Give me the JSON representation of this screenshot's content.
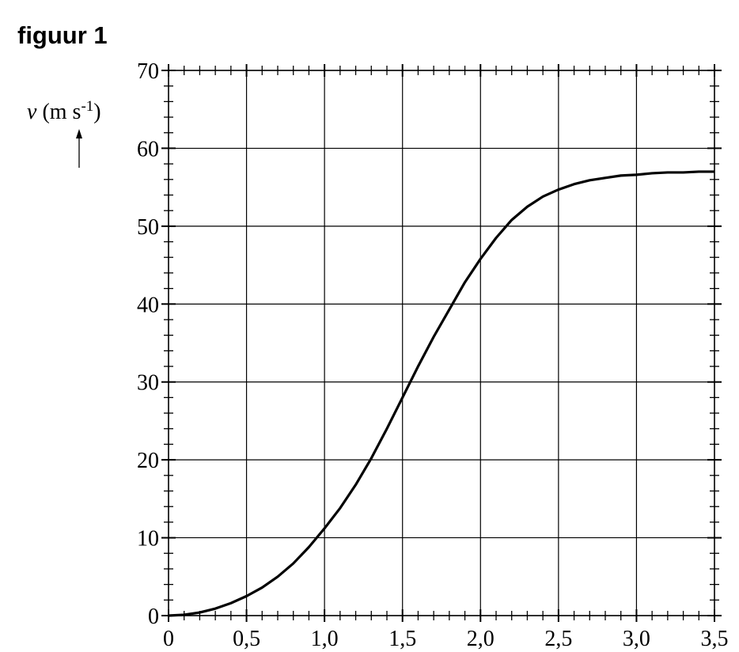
{
  "chart_data": {
    "type": "line",
    "title": "figuur 1",
    "ylabel": {
      "quantity": "v",
      "unit": "(m s",
      "exponent": "-1",
      "close": ")"
    },
    "x": [
      0,
      0.1,
      0.2,
      0.3,
      0.4,
      0.5,
      0.6,
      0.7,
      0.8,
      0.9,
      1.0,
      1.1,
      1.2,
      1.3,
      1.4,
      1.5,
      1.6,
      1.7,
      1.8,
      1.9,
      2.0,
      2.1,
      2.2,
      2.3,
      2.4,
      2.5,
      2.6,
      2.7,
      2.8,
      2.9,
      3.0,
      3.1,
      3.2,
      3.3,
      3.4,
      3.5
    ],
    "series": [
      {
        "color": "#000000",
        "values": [
          0,
          0.1,
          0.4,
          0.9,
          1.6,
          2.5,
          3.6,
          5,
          6.7,
          8.8,
          11.2,
          13.8,
          16.8,
          20.2,
          24,
          28,
          32,
          35.8,
          39.3,
          42.8,
          45.8,
          48.5,
          50.8,
          52.5,
          53.8,
          54.7,
          55.4,
          55.9,
          56.2,
          56.5,
          56.6,
          56.8,
          56.9,
          56.9,
          57.0,
          57.0
        ]
      }
    ],
    "xlim": [
      0,
      3.5
    ],
    "ylim": [
      0,
      70
    ],
    "xticks": [
      0,
      {
        "value": 0.5,
        "label": "0,5"
      },
      {
        "value": 1.0,
        "label": "1,0"
      },
      {
        "value": 1.5,
        "label": "1,5"
      },
      {
        "value": 2.0,
        "label": "2,0"
      },
      {
        "value": 2.5,
        "label": "2,5"
      },
      {
        "value": 3.0,
        "label": "3,0"
      },
      {
        "value": 3.5,
        "label": "3,5"
      }
    ],
    "yticks": [
      0,
      10,
      20,
      30,
      40,
      50,
      60,
      70
    ],
    "xminorticks": [
      0.1,
      0.2,
      0.3,
      0.4,
      0.6,
      0.7,
      0.8,
      0.9,
      1.1,
      1.2,
      1.3,
      1.4,
      1.6,
      1.7,
      1.8,
      1.9,
      2.1,
      2.2,
      2.3,
      2.4,
      2.6,
      2.7,
      2.8,
      2.9,
      3.1,
      3.2,
      3.3,
      3.4
    ],
    "yminorticks": [
      2,
      4,
      6,
      8,
      12,
      14,
      16,
      18,
      22,
      24,
      26,
      28,
      32,
      34,
      36,
      38,
      42,
      44,
      46,
      48,
      52,
      54,
      56,
      58,
      62,
      64,
      66,
      68
    ],
    "grid": true
  }
}
